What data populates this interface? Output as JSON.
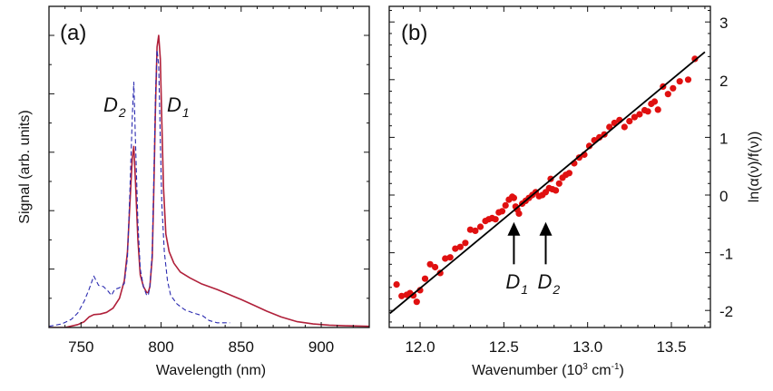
{
  "chart_data": [
    {
      "panel": "a",
      "type": "line",
      "panel_label": "(a)",
      "xlabel": "Wavelength (nm)",
      "ylabel": "Signal (arb. units)",
      "xlim": [
        730,
        930
      ],
      "ylim": [
        0,
        5.5
      ],
      "xticks": [
        750,
        800,
        850,
        900
      ],
      "xtick_labels": [
        "750",
        "800",
        "850",
        "900"
      ],
      "yticks_major": [
        0,
        1,
        2,
        3,
        4,
        5
      ],
      "ytick_labels_shown": false,
      "grid": false,
      "annotations": [
        {
          "text": "D",
          "sub": "2",
          "x": 778,
          "y": 3.8
        },
        {
          "text": "D",
          "sub": "1",
          "x": 803,
          "y": 3.8
        }
      ],
      "series": [
        {
          "name": "solid",
          "color": "#b0203a",
          "style": "solid",
          "x": [
            730,
            740,
            748,
            752,
            755,
            758,
            762,
            766,
            770,
            774,
            777,
            779,
            780.5,
            782,
            783,
            784,
            785.5,
            787,
            789,
            791,
            792,
            793,
            794.5,
            795.5,
            796.5,
            797.5,
            798.5,
            799.5,
            800.5,
            801.5,
            803,
            805,
            808,
            812,
            818,
            825,
            835,
            842,
            850,
            858,
            866,
            875,
            885,
            895,
            905,
            915,
            930
          ],
          "y": [
            0.0,
            0.0,
            0.05,
            0.1,
            0.18,
            0.22,
            0.23,
            0.26,
            0.33,
            0.5,
            0.8,
            1.3,
            2.1,
            2.9,
            3.1,
            2.5,
            1.5,
            0.9,
            0.7,
            0.6,
            0.6,
            0.7,
            1.2,
            2.4,
            3.8,
            4.8,
            5.0,
            4.6,
            3.5,
            2.4,
            1.6,
            1.3,
            1.1,
            0.95,
            0.85,
            0.75,
            0.65,
            0.57,
            0.48,
            0.38,
            0.28,
            0.18,
            0.1,
            0.06,
            0.04,
            0.03,
            0.02
          ]
        },
        {
          "name": "dashed",
          "color": "#2b2bb0",
          "style": "dashed",
          "x": [
            730,
            738,
            744,
            748,
            752,
            755,
            758,
            761,
            764,
            767,
            769,
            771,
            774,
            777,
            779,
            780.5,
            782,
            783,
            784,
            785.5,
            787,
            789,
            791,
            792,
            793,
            794.5,
            795.5,
            796.5,
            797.5,
            798.5,
            799.5,
            800.5,
            802,
            804,
            806,
            810,
            815,
            820,
            826,
            830,
            835,
            843
          ],
          "y": [
            0.02,
            0.06,
            0.14,
            0.25,
            0.45,
            0.65,
            0.88,
            0.72,
            0.7,
            0.62,
            0.55,
            0.65,
            0.68,
            0.75,
            1.2,
            2.3,
            3.6,
            4.2,
            3.2,
            1.8,
            1.0,
            0.7,
            0.55,
            0.55,
            0.7,
            1.3,
            2.6,
            4.0,
            4.75,
            4.5,
            3.2,
            2.1,
            1.3,
            0.8,
            0.55,
            0.4,
            0.3,
            0.25,
            0.2,
            0.12,
            0.08,
            0.08
          ]
        }
      ]
    },
    {
      "panel": "b",
      "type": "scatter",
      "panel_label": "(b)",
      "xlabel": "Wavenumber (10³ cm⁻¹)",
      "ylabel": "ln(α(ν)/f(ν))",
      "xlim": [
        11.82,
        13.74
      ],
      "ylim": [
        -2.2,
        3.3
      ],
      "xticks": [
        12.0,
        12.5,
        13.0,
        13.5
      ],
      "xtick_labels": [
        "12.0",
        "12.5",
        "13.0",
        "13.5"
      ],
      "yticks": [
        -2,
        -1,
        0,
        1,
        2,
        3
      ],
      "ytick_labels": [
        "-2",
        "-1",
        "0",
        "1",
        "2",
        "3"
      ],
      "y_axis_side": "right",
      "grid": false,
      "fit_line": {
        "x": [
          11.82,
          13.7
        ],
        "y": [
          -2.05,
          2.48
        ],
        "color": "#000000"
      },
      "marker_color": "#e01010",
      "annotations": [
        {
          "text": "D",
          "sub": "1",
          "arrow_x": 12.56,
          "arrow_from_y": -1.2,
          "arrow_to_y": -0.5
        },
        {
          "text": "D",
          "sub": "2",
          "arrow_x": 12.75,
          "arrow_from_y": -1.2,
          "arrow_to_y": -0.5
        }
      ],
      "points": {
        "x": [
          11.86,
          11.89,
          11.92,
          11.94,
          11.96,
          11.98,
          12.0,
          12.03,
          12.06,
          12.09,
          12.12,
          12.15,
          12.18,
          12.21,
          12.24,
          12.27,
          12.3,
          12.33,
          12.36,
          12.39,
          12.41,
          12.43,
          12.45,
          12.47,
          12.49,
          12.51,
          12.53,
          12.55,
          12.56,
          12.57,
          12.58,
          12.59,
          12.61,
          12.63,
          12.65,
          12.67,
          12.69,
          12.71,
          12.73,
          12.75,
          12.77,
          12.78,
          12.79,
          12.81,
          12.83,
          12.85,
          12.87,
          12.89,
          12.92,
          12.95,
          12.98,
          13.01,
          13.04,
          13.07,
          13.1,
          13.13,
          13.16,
          13.19,
          13.22,
          13.25,
          13.28,
          13.31,
          13.34,
          13.36,
          13.38,
          13.4,
          13.42,
          13.45,
          13.48,
          13.51,
          13.55,
          13.6,
          13.64
        ],
        "y": [
          -1.55,
          -1.75,
          -1.73,
          -1.7,
          -1.74,
          -1.85,
          -1.65,
          -1.45,
          -1.2,
          -1.25,
          -1.35,
          -1.1,
          -1.08,
          -0.93,
          -0.9,
          -0.83,
          -0.6,
          -0.62,
          -0.55,
          -0.45,
          -0.42,
          -0.4,
          -0.42,
          -0.3,
          -0.28,
          -0.18,
          -0.08,
          -0.03,
          -0.05,
          -0.2,
          -0.25,
          -0.32,
          -0.15,
          -0.1,
          -0.05,
          0.0,
          0.05,
          -0.02,
          0.0,
          0.05,
          0.12,
          0.28,
          0.1,
          0.08,
          0.2,
          0.3,
          0.35,
          0.38,
          0.55,
          0.65,
          0.7,
          0.85,
          0.95,
          1.0,
          1.05,
          1.18,
          1.25,
          1.3,
          1.18,
          1.28,
          1.35,
          1.4,
          1.47,
          1.45,
          1.58,
          1.62,
          1.48,
          1.88,
          1.75,
          1.85,
          1.97,
          2.0,
          2.36
        ]
      }
    }
  ]
}
